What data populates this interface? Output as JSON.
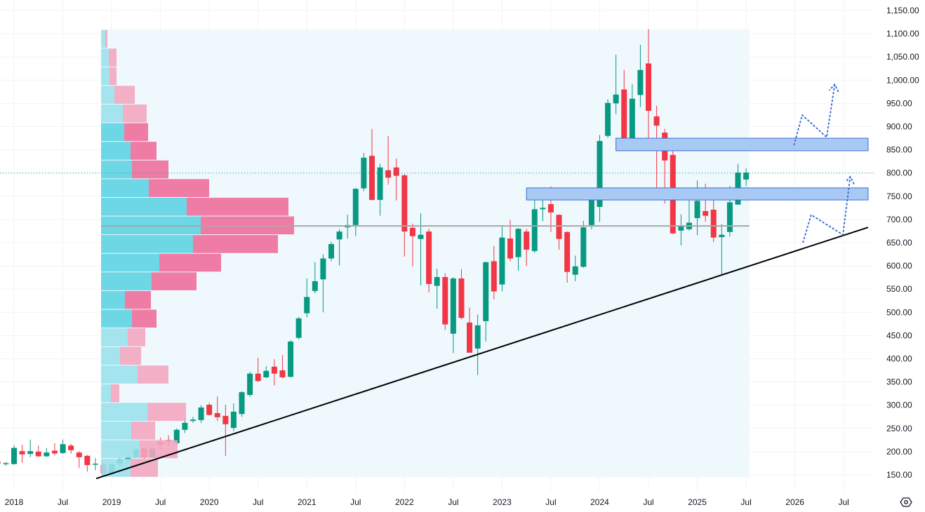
{
  "chart_data": {
    "type": "candlestick",
    "interval": "monthly",
    "start_month": "2017-11",
    "colors": {
      "up": "#089981",
      "down": "#f23645",
      "profile_up": "#5fd3e2",
      "profile_down": "#ee6e9a",
      "profile_up_light": "#9ae1ec",
      "profile_down_light": "#f2a6c0",
      "zone_fill": "#a9c9f5",
      "zone_border": "#3b6fd4",
      "projection": "#3b6fd4",
      "trendline": "#000000",
      "poc": "#a8a8a8",
      "value_area_bg": "#eef8fd"
    },
    "ohlc": [
      [
        178,
        182,
        172,
        174
      ],
      [
        174,
        178,
        170,
        175
      ],
      [
        173,
        214,
        172,
        208
      ],
      [
        201,
        215,
        176,
        194
      ],
      [
        195,
        226,
        188,
        201
      ],
      [
        200,
        213,
        188,
        190
      ],
      [
        190,
        208,
        188,
        198
      ],
      [
        202,
        218,
        192,
        196
      ],
      [
        197,
        226,
        195,
        216
      ],
      [
        213,
        217,
        196,
        203
      ],
      [
        198,
        201,
        165,
        188
      ],
      [
        191,
        193,
        157,
        171
      ],
      [
        173,
        186,
        160,
        174
      ],
      [
        172,
        176,
        148,
        153
      ],
      [
        152,
        175,
        147,
        173
      ],
      [
        174,
        188,
        172,
        184
      ],
      [
        183,
        196,
        175,
        188
      ],
      [
        188,
        207,
        186,
        205
      ],
      [
        207,
        210,
        184,
        188
      ],
      [
        188,
        209,
        186,
        206
      ],
      [
        222,
        230,
        205,
        215
      ],
      [
        225,
        235,
        212,
        222
      ],
      [
        218,
        250,
        214,
        247
      ],
      [
        247,
        272,
        240,
        262
      ],
      [
        266,
        275,
        262,
        269
      ],
      [
        268,
        300,
        262,
        295
      ],
      [
        301,
        305,
        278,
        279
      ],
      [
        283,
        319,
        266,
        274
      ],
      [
        277,
        301,
        191,
        259
      ],
      [
        251,
        304,
        244,
        286
      ],
      [
        281,
        330,
        275,
        328
      ],
      [
        322,
        372,
        318,
        368
      ],
      [
        368,
        402,
        350,
        352
      ],
      [
        360,
        384,
        358,
        374
      ],
      [
        383,
        399,
        343,
        368
      ],
      [
        375,
        408,
        358,
        360
      ],
      [
        361,
        440,
        360,
        437
      ],
      [
        445,
        490,
        442,
        487
      ],
      [
        498,
        573,
        489,
        533
      ],
      [
        546,
        608,
        541,
        567
      ],
      [
        571,
        625,
        500,
        616
      ],
      [
        616,
        652,
        610,
        647
      ],
      [
        657,
        679,
        601,
        674
      ],
      [
        683,
        710,
        659,
        688
      ],
      [
        688,
        768,
        664,
        766
      ],
      [
        767,
        843,
        761,
        833
      ],
      [
        837,
        895,
        741,
        742
      ],
      [
        742,
        820,
        708,
        812
      ],
      [
        806,
        880,
        775,
        790
      ],
      [
        812,
        831,
        741,
        794
      ],
      [
        795,
        798,
        620,
        674
      ],
      [
        682,
        691,
        599,
        664
      ],
      [
        658,
        713,
        558,
        667
      ],
      [
        674,
        680,
        543,
        561
      ],
      [
        557,
        594,
        508,
        576
      ],
      [
        576,
        584,
        462,
        474
      ],
      [
        454,
        576,
        412,
        573
      ],
      [
        573,
        593,
        485,
        488
      ],
      [
        478,
        510,
        413,
        413
      ],
      [
        422,
        495,
        365,
        472
      ],
      [
        481,
        609,
        437,
        608
      ],
      [
        610,
        643,
        528,
        545
      ],
      [
        560,
        686,
        545,
        661
      ],
      [
        659,
        699,
        610,
        616
      ],
      [
        619,
        681,
        590,
        680
      ],
      [
        674,
        680,
        600,
        635
      ],
      [
        632,
        747,
        628,
        722
      ],
      [
        722,
        744,
        696,
        725
      ],
      [
        733,
        771,
        673,
        715
      ],
      [
        710,
        711,
        635,
        658
      ],
      [
        673,
        674,
        564,
        587
      ],
      [
        581,
        622,
        567,
        599
      ],
      [
        598,
        697,
        596,
        683
      ],
      [
        688,
        765,
        679,
        756
      ],
      [
        727,
        882,
        695,
        869
      ],
      [
        880,
        959,
        876,
        951
      ],
      [
        950,
        1055,
        927,
        969
      ],
      [
        980,
        1022,
        854,
        871
      ],
      [
        870,
        991,
        848,
        960
      ],
      [
        968,
        1076,
        942,
        1022
      ],
      [
        1036,
        1110,
        850,
        934
      ],
      [
        922,
        945,
        767,
        902
      ],
      [
        887,
        895,
        734,
        827
      ],
      [
        839,
        872,
        668,
        670
      ],
      [
        676,
        711,
        644,
        685
      ],
      [
        679,
        756,
        676,
        693
      ],
      [
        703,
        784,
        666,
        740
      ],
      [
        718,
        777,
        695,
        708
      ],
      [
        721,
        745,
        651,
        661
      ],
      [
        662,
        690,
        581,
        667
      ],
      [
        673,
        772,
        663,
        737
      ],
      [
        732,
        820,
        732,
        801
      ],
      [
        786,
        810,
        772,
        801
      ]
    ],
    "current_price": 800,
    "y_axis": {
      "range": [
        135,
        1170
      ],
      "ticks": [
        "150.00",
        "200.00",
        "250.00",
        "300.00",
        "350.00",
        "400.00",
        "450.00",
        "500.00",
        "550.00",
        "600.00",
        "650.00",
        "700.00",
        "750.00",
        "800.00",
        "850.00",
        "900.00",
        "950.00",
        "1,000.00",
        "1,050.00",
        "1,100.00",
        "1,150.00"
      ],
      "tick_values": [
        150,
        200,
        250,
        300,
        350,
        400,
        450,
        500,
        550,
        600,
        650,
        700,
        750,
        800,
        850,
        900,
        950,
        1000,
        1050,
        1100,
        1150
      ]
    },
    "x_axis": {
      "labels": [
        "2018",
        "Jul",
        "2019",
        "Jul",
        "2020",
        "Jul",
        "2021",
        "Jul",
        "2022",
        "Jul",
        "2023",
        "Jul",
        "2024",
        "Jul",
        "2025",
        "Jul",
        "2026",
        "Jul"
      ],
      "label_months_from_2018_01": [
        0,
        6,
        12,
        18,
        24,
        30,
        36,
        42,
        48,
        54,
        60,
        66,
        72,
        78,
        84,
        90,
        96,
        102
      ]
    },
    "volume_profile": {
      "price_top": 1109,
      "price_bottom": 145,
      "start_month": 10.7,
      "end_month": 90.4,
      "poc_price": 686,
      "value_area_rows": [
        5,
        15
      ],
      "rows_top_to_bottom": [
        [
          6,
          3
        ],
        [
          11,
          11
        ],
        [
          12,
          10
        ],
        [
          19,
          29
        ],
        [
          31,
          34
        ],
        [
          33,
          34
        ],
        [
          42,
          37
        ],
        [
          44,
          52
        ],
        [
          68,
          86
        ],
        [
          122,
          145
        ],
        [
          142,
          133
        ],
        [
          131,
          121
        ],
        [
          83,
          88
        ],
        [
          72,
          64
        ],
        [
          34,
          37
        ],
        [
          44,
          35
        ],
        [
          38,
          25
        ],
        [
          27,
          30
        ],
        [
          52,
          44
        ],
        [
          14,
          12
        ],
        [
          66,
          55
        ],
        [
          43,
          34
        ],
        [
          55,
          54
        ],
        [
          42,
          39
        ]
      ]
    },
    "drawings": {
      "zones": [
        {
          "from_month": 74,
          "to_month": 105,
          "low": 848,
          "high": 875
        },
        {
          "from_month": 63,
          "to_month": 105,
          "low": 742,
          "high": 768
        }
      ],
      "trendline": [
        [
          10.1,
          142
        ],
        [
          105,
          683
        ]
      ],
      "projections": [
        [
          [
            95.9,
            861
          ],
          [
            96.9,
            925
          ],
          [
            99.9,
            877
          ],
          [
            100.9,
            991
          ]
        ],
        [
          [
            97.0,
            651
          ],
          [
            98.0,
            710
          ],
          [
            101.9,
            667
          ],
          [
            102.8,
            792
          ]
        ]
      ]
    }
  },
  "settings_icon": "settings-hexagon-icon"
}
